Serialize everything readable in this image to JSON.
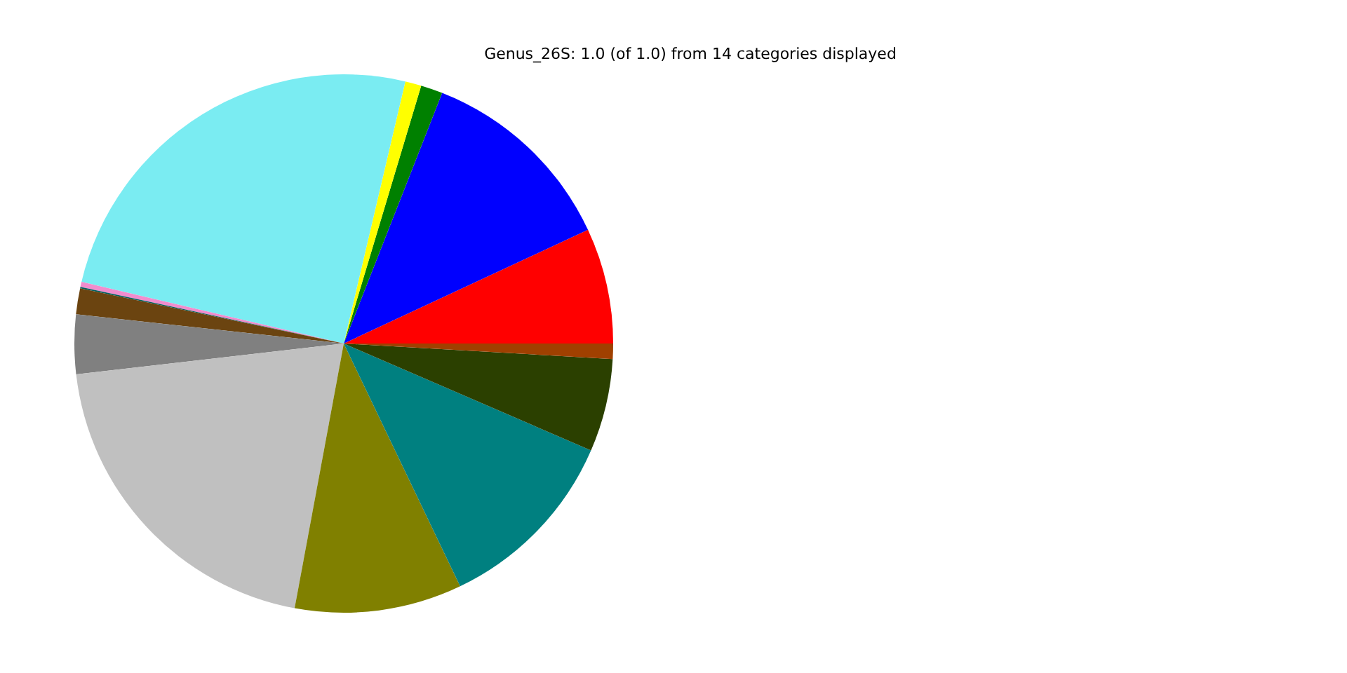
{
  "chart_data": {
    "type": "pie",
    "title": "Genus_26S: 1.0 (of 1.0) from 14 categories displayed",
    "categories": [
      null,
      null,
      null,
      null,
      null,
      null,
      null,
      null,
      null,
      null,
      null,
      null,
      null,
      null
    ],
    "values": [
      6.94,
      12.11,
      1.31,
      0.97,
      24.99,
      0.31,
      0.08,
      1.56,
      3.56,
      20.25,
      10.03,
      11.39,
      5.58,
      0.92
    ],
    "colors": [
      "#ff0000",
      "#0000ff",
      "#008000",
      "#ffff00",
      "#7aecf2",
      "#f08ccd",
      "#006060",
      "#6b4410",
      "#808080",
      "#c0c0c0",
      "#808000",
      "#008080",
      "#2b4000",
      "#a04000"
    ]
  }
}
